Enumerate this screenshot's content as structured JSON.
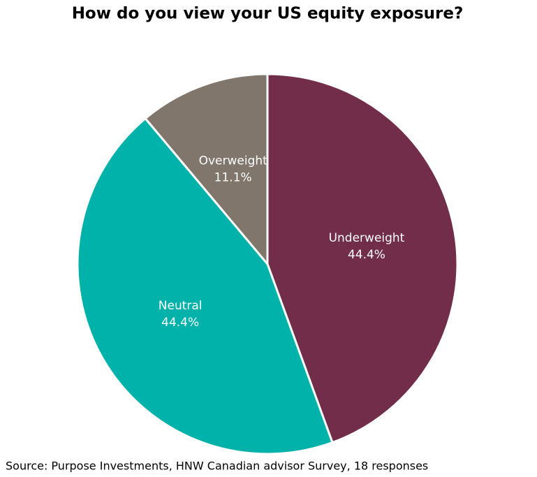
{
  "chart_data": {
    "type": "pie",
    "title": "How do you view your US equity exposure?",
    "categories": [
      "Underweight",
      "Neutral",
      "Overweight"
    ],
    "values": [
      44.4,
      44.4,
      11.1
    ],
    "value_labels": [
      "44.4%",
      "44.4%",
      "11.1%"
    ],
    "colors": [
      "#722d4a",
      "#00b2a9",
      "#80766b"
    ],
    "source": "Source: Purpose Investments, HNW Canadian advisor Survey, 18 responses"
  }
}
